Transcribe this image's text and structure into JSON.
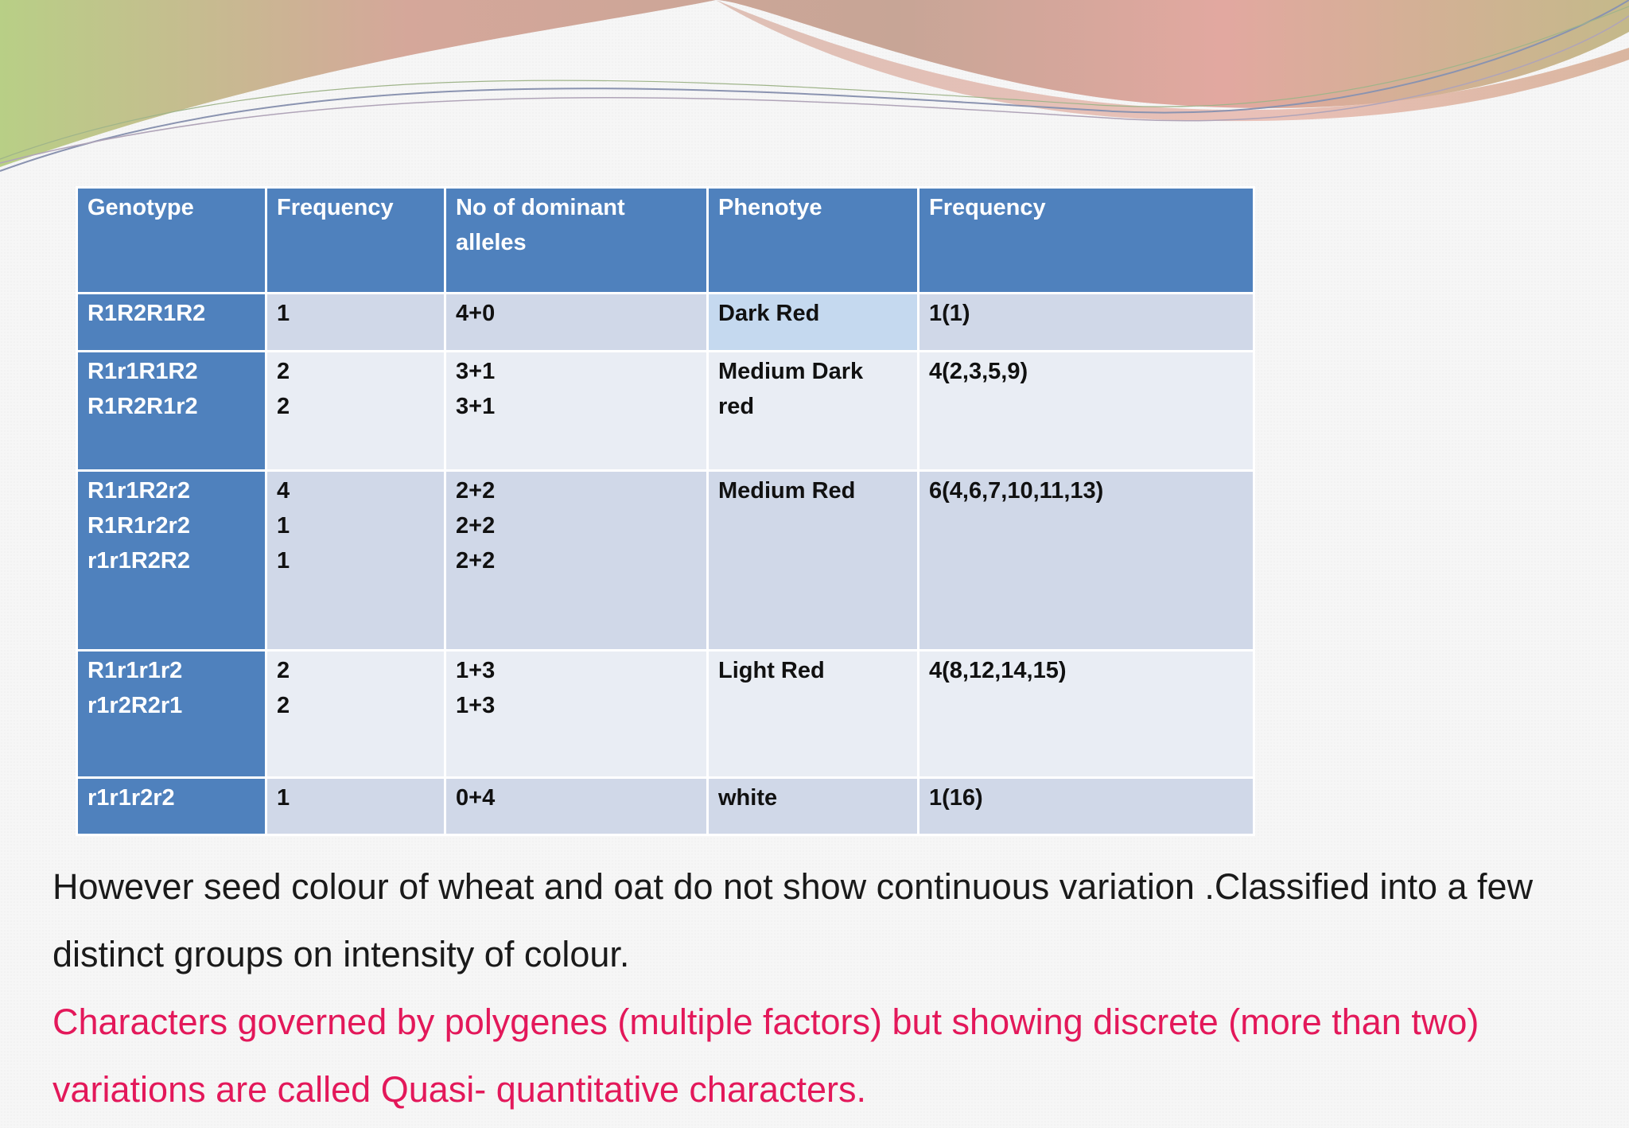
{
  "table": {
    "headers": [
      "Genotype",
      "Frequency",
      "No of dominant alleles",
      "Phenotye",
      "Frequency"
    ],
    "header_allele_words": [
      "No",
      "of",
      "dominant"
    ],
    "header_allele_second": "alleles",
    "rows": [
      {
        "genotypes": [
          "R1R2R1R2"
        ],
        "frequencies": [
          "1"
        ],
        "alleles": [
          "4+0"
        ],
        "phenotype": "Dark Red",
        "phenotype_freq": "1(1)"
      },
      {
        "genotypes": [
          "R1r1R1R2",
          "R1R2R1r2"
        ],
        "frequencies": [
          "2",
          "2"
        ],
        "alleles": [
          "3+1",
          "3+1"
        ],
        "phenotype": "Medium Dark red",
        "phenotype_words": [
          "Medium",
          "Dark"
        ],
        "phenotype_second": "red",
        "phenotype_freq": "4(2,3,5,9)"
      },
      {
        "genotypes": [
          "R1r1R2r2",
          "R1R1r2r2",
          "r1r1R2R2"
        ],
        "frequencies": [
          "4",
          "1",
          "1"
        ],
        "alleles": [
          "2+2",
          "2+2",
          "2+2"
        ],
        "phenotype": "Medium Red",
        "phenotype_freq": "6(4,6,7,10,11,13)"
      },
      {
        "genotypes": [
          "R1r1r1r2",
          "r1r2R2r1"
        ],
        "frequencies": [
          "2",
          "2"
        ],
        "alleles": [
          "1+3",
          "1+3"
        ],
        "phenotype": "Light Red",
        "phenotype_freq": "4(8,12,14,15)"
      },
      {
        "genotypes": [
          "r1r1r2r2"
        ],
        "frequencies": [
          "1"
        ],
        "alleles": [
          "0+4"
        ],
        "phenotype": "white",
        "phenotype_freq": "1(16)"
      }
    ]
  },
  "paragraph_black": "However seed colour of wheat and oat do not show continuous variation .Classified into a few distinct groups on intensity of colour.",
  "paragraph_red": "Characters governed by polygenes (multiple factors) but showing discrete (more than two) variations are called Quasi- quantitative characters.",
  "colors": {
    "header_blue": "#4f81bd",
    "row_odd": "#d0d8e8",
    "row_even": "#e9edf4",
    "highlight_text": "#e3185a"
  }
}
